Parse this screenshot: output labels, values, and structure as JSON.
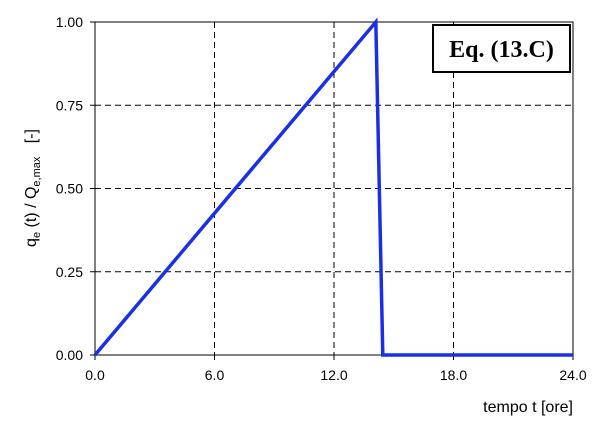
{
  "chart_data": {
    "type": "line",
    "title": "",
    "xlabel": "tempo t [ore]",
    "ylabel": {
      "prefix": "q",
      "prefix_sub": "e",
      "middle": " (t) / Q",
      "middle_sub": "e,max",
      "unit": "   [-]"
    },
    "annotation": "Eq. (13.C)",
    "xlim": [
      0,
      24
    ],
    "ylim": [
      0,
      1
    ],
    "xticks": [
      0,
      6,
      12,
      18,
      24
    ],
    "xtick_labels": [
      "0.0",
      "6.0",
      "12.0",
      "18.0",
      "24.0"
    ],
    "yticks": [
      0,
      0.25,
      0.5,
      0.75,
      1
    ],
    "ytick_labels": [
      "0.00",
      "0.25",
      "0.50",
      "0.75",
      "1.00"
    ],
    "grid": true,
    "series": [
      {
        "color": "#1a2fe6",
        "x": [
          0,
          14.1,
          14.45,
          24
        ],
        "y": [
          0,
          1,
          0,
          0
        ]
      }
    ]
  }
}
